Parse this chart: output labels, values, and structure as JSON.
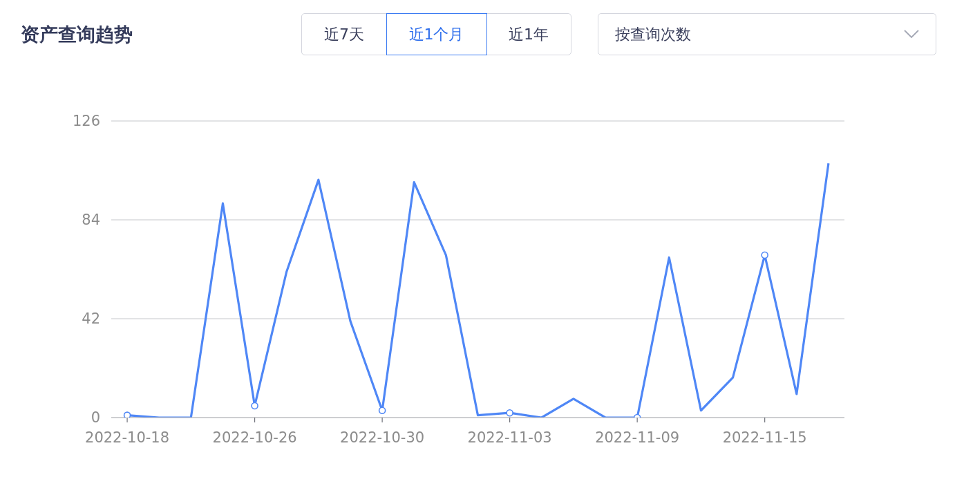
{
  "chart_data": {
    "type": "line",
    "title": "资产查询趋势",
    "annotations": [
      "近7天",
      "近1个月",
      "近1年",
      "按查询次数"
    ],
    "categories": [
      "2022-10-18",
      null,
      null,
      null,
      "2022-10-26",
      null,
      null,
      null,
      "2022-10-30",
      null,
      null,
      null,
      "2022-11-03",
      null,
      null,
      null,
      "2022-11-09",
      null,
      null,
      null,
      "2022-11-15",
      null,
      null
    ],
    "series": [
      {
        "color": "#4f87f6",
        "values": [
          1,
          0,
          0,
          91,
          5,
          62,
          101,
          41,
          3,
          100,
          69,
          1,
          2,
          0,
          8,
          0,
          0,
          68,
          3,
          17,
          69,
          10,
          108
        ]
      }
    ],
    "ylim": [
      0,
      126
    ],
    "yticks": [
      0,
      42,
      84,
      126
    ],
    "grid": "y"
  }
}
